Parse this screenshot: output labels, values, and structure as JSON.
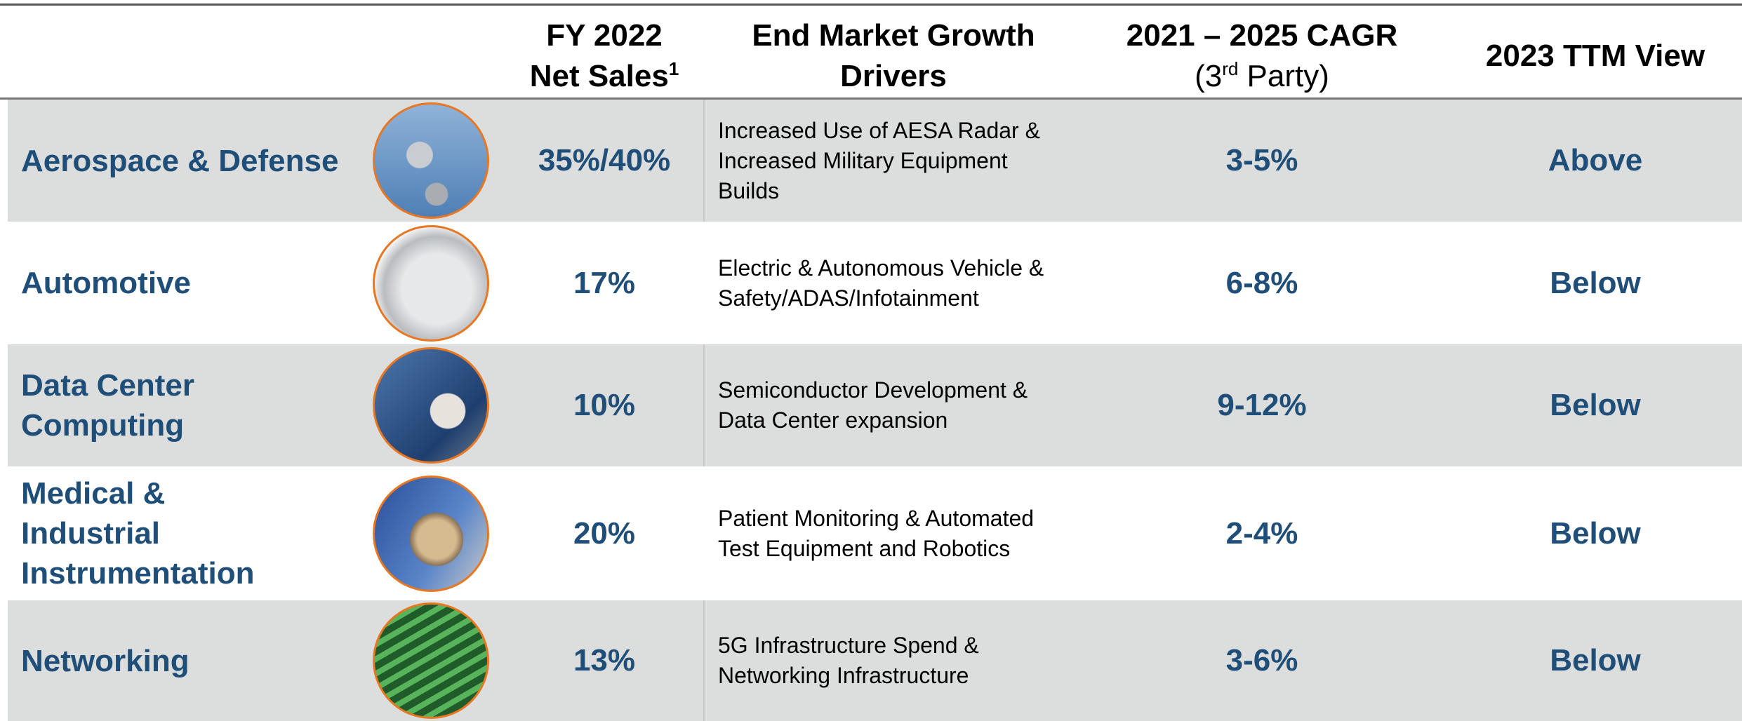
{
  "table": {
    "header": {
      "sales": {
        "line1": "FY 2022",
        "line2": "Net Sales",
        "sup": "1"
      },
      "drivers": {
        "line1": "End Market Growth",
        "line2": "Drivers"
      },
      "cagr": {
        "line1": "2021 – 2025 CAGR",
        "pre": "(3",
        "sup": "rd",
        "post": " Party)"
      },
      "view": {
        "line1": "2023 TTM View"
      }
    },
    "rows": [
      {
        "name": [
          "Aerospace & Defense"
        ],
        "sales": "35%/40%",
        "drivers": [
          "Increased Use of AESA Radar &",
          "Increased Military Equipment",
          "Builds"
        ],
        "cagr": "3-5%",
        "view": "Above"
      },
      {
        "name": [
          "Automotive"
        ],
        "sales": "17%",
        "drivers": [
          "Electric & Autonomous Vehicle &",
          "Safety/ADAS/Infotainment"
        ],
        "cagr": "6-8%",
        "view": "Below"
      },
      {
        "name": [
          "Data Center Computing"
        ],
        "sales": "10%",
        "drivers": [
          "Semiconductor Development &",
          "Data Center expansion"
        ],
        "cagr": "9-12%",
        "view": "Below"
      },
      {
        "name": [
          "Medical &",
          "Industrial",
          "Instrumentation"
        ],
        "sales": "20%",
        "drivers": [
          "Patient Monitoring & Automated",
          "Test Equipment and Robotics"
        ],
        "cagr": "2-4%",
        "view": "Below"
      },
      {
        "name": [
          "Networking"
        ],
        "sales": "13%",
        "drivers": [
          "5G Infrastructure Spend &",
          "Networking Infrastructure"
        ],
        "cagr": "3-6%",
        "view": "Below"
      }
    ]
  }
}
